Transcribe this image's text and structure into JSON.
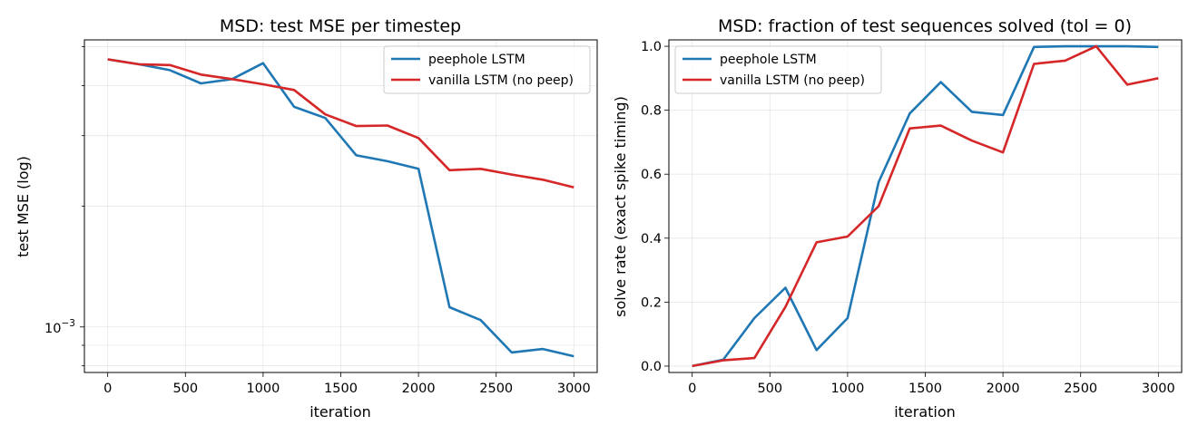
{
  "colors": {
    "peephole": "#1f77b4",
    "vanilla": "#d62728"
  },
  "chart_data": [
    {
      "type": "line",
      "title": "MSD: test MSE per timestep",
      "xlabel": "iteration",
      "ylabel": "test MSE (log)",
      "yscale": "log",
      "xlim": [
        -150,
        3150
      ],
      "ylim": [
        0.00077,
        0.0052
      ],
      "xticks": [
        "0",
        "500",
        "1000",
        "1500",
        "2000",
        "2500",
        "3000"
      ],
      "yticks": [
        {
          "base": "10",
          "exp": "−3"
        }
      ],
      "grid": true,
      "legend": "top-right",
      "x": [
        0,
        200,
        400,
        600,
        800,
        1000,
        1200,
        1400,
        1600,
        1800,
        2000,
        2200,
        2400,
        2600,
        2800,
        3000
      ],
      "series": [
        {
          "name": "peephole LSTM",
          "color": "#1f77b4",
          "values": [
            0.00465,
            0.00452,
            0.00437,
            0.00405,
            0.00415,
            0.00455,
            0.00354,
            0.00332,
            0.00268,
            0.00259,
            0.00248,
            0.00112,
            0.00104,
            0.000864,
            0.000881,
            0.000845
          ]
        },
        {
          "name": "vanilla LSTM (no peep)",
          "color": "#d62728",
          "values": [
            0.00465,
            0.00452,
            0.0045,
            0.00426,
            0.00415,
            0.00403,
            0.0039,
            0.00339,
            0.00317,
            0.00318,
            0.00296,
            0.00246,
            0.00248,
            0.0024,
            0.00233,
            0.00223
          ]
        }
      ]
    },
    {
      "type": "line",
      "title": "MSD: fraction of test sequences solved (tol = 0)",
      "xlabel": "iteration",
      "ylabel": "solve rate (exact spike timing)",
      "xlim": [
        -150,
        3150
      ],
      "ylim": [
        -0.02,
        1.02
      ],
      "xticks": [
        "0",
        "500",
        "1000",
        "1500",
        "2000",
        "2500",
        "3000"
      ],
      "yticks": [
        "0.0",
        "0.2",
        "0.4",
        "0.6",
        "0.8",
        "1.0"
      ],
      "grid": true,
      "legend": "top-left",
      "x": [
        0,
        200,
        400,
        600,
        800,
        1000,
        1200,
        1400,
        1600,
        1800,
        2000,
        2200,
        2400,
        2600,
        2800,
        3000
      ],
      "series": [
        {
          "name": "peephole LSTM",
          "color": "#1f77b4",
          "values": [
            0.0,
            0.02,
            0.15,
            0.245,
            0.05,
            0.15,
            0.575,
            0.79,
            0.888,
            0.795,
            0.785,
            0.998,
            1.0,
            1.0,
            1.0,
            0.998
          ]
        },
        {
          "name": "vanilla LSTM (no peep)",
          "color": "#d62728",
          "values": [
            0.0,
            0.018,
            0.025,
            0.185,
            0.387,
            0.405,
            0.5,
            0.743,
            0.752,
            0.705,
            0.668,
            0.945,
            0.955,
            1.0,
            0.88,
            0.9
          ]
        }
      ]
    }
  ]
}
